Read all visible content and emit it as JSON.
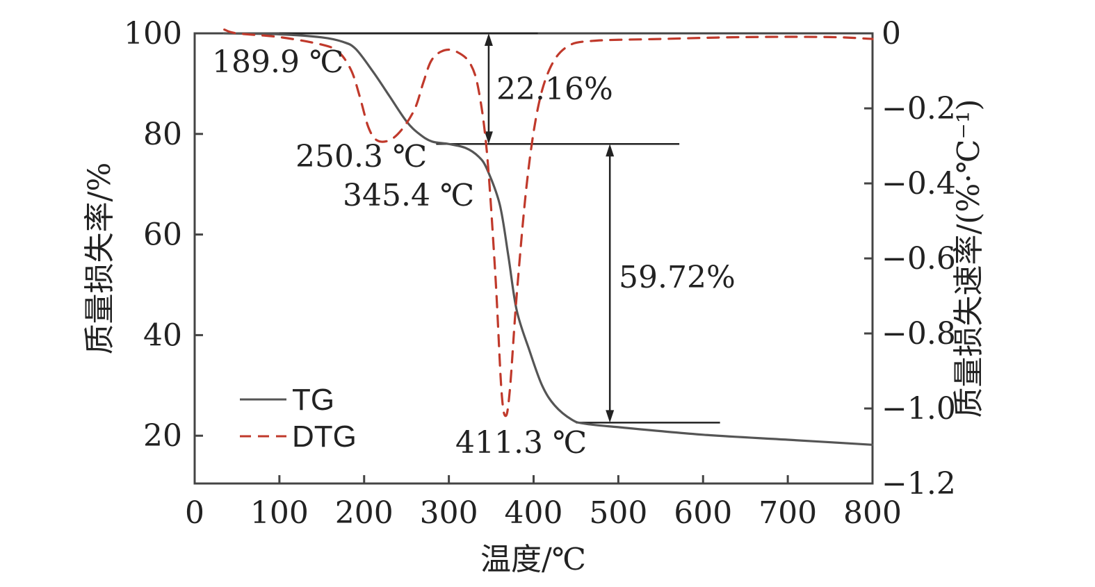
{
  "chart_data": {
    "type": "line",
    "xlabel": "温度/℃",
    "ylabel_left": "质量损失率/%",
    "ylabel_right": "质量损失速率/(%·℃⁻¹)",
    "xlim": [
      0,
      800
    ],
    "ylim_left": [
      10.5,
      100
    ],
    "ylim_right": [
      -1.2,
      0
    ],
    "x_ticks": [
      "0",
      "100",
      "200",
      "300",
      "400",
      "500",
      "600",
      "700",
      "800"
    ],
    "y_left_ticks": [
      "100",
      "80",
      "60",
      "40",
      "20"
    ],
    "y_right_ticks": [
      "0",
      "−0.2",
      "−0.4",
      "−0.6",
      "−0.8",
      "−1.0",
      "−1.2"
    ],
    "grid": false,
    "legend_position": "bottom-left",
    "series": [
      {
        "name": "TG",
        "axis": "left",
        "color": "#555555",
        "dash": "solid",
        "points": [
          [
            35,
            100
          ],
          [
            100,
            99.8
          ],
          [
            150,
            99.2
          ],
          [
            175,
            98.3
          ],
          [
            190,
            96.9
          ],
          [
            210,
            92.5
          ],
          [
            230,
            87.5
          ],
          [
            250,
            82.5
          ],
          [
            265,
            80
          ],
          [
            280,
            78.5
          ],
          [
            300,
            78
          ],
          [
            320,
            77.2
          ],
          [
            335,
            75.5
          ],
          [
            345,
            73
          ],
          [
            360,
            66
          ],
          [
            370,
            56
          ],
          [
            380,
            45
          ],
          [
            395,
            37
          ],
          [
            410,
            30
          ],
          [
            425,
            26
          ],
          [
            445,
            23.2
          ],
          [
            460,
            22.4
          ],
          [
            500,
            21.7
          ],
          [
            600,
            20.2
          ],
          [
            700,
            19.2
          ],
          [
            800,
            18.2
          ]
        ]
      },
      {
        "name": "DTG",
        "axis": "right",
        "color": "#c0392b",
        "dash": "dashed",
        "points": [
          [
            35,
            0.01
          ],
          [
            50,
            0
          ],
          [
            100,
            -0.01
          ],
          [
            150,
            -0.03
          ],
          [
            170,
            -0.05
          ],
          [
            185,
            -0.1
          ],
          [
            195,
            -0.17
          ],
          [
            205,
            -0.25
          ],
          [
            215,
            -0.285
          ],
          [
            230,
            -0.285
          ],
          [
            245,
            -0.255
          ],
          [
            260,
            -0.2
          ],
          [
            270,
            -0.13
          ],
          [
            280,
            -0.07
          ],
          [
            295,
            -0.045
          ],
          [
            310,
            -0.05
          ],
          [
            325,
            -0.08
          ],
          [
            335,
            -0.15
          ],
          [
            345,
            -0.32
          ],
          [
            355,
            -0.65
          ],
          [
            362,
            -0.95
          ],
          [
            367,
            -1.02
          ],
          [
            372,
            -0.95
          ],
          [
            380,
            -0.7
          ],
          [
            392,
            -0.4
          ],
          [
            405,
            -0.2
          ],
          [
            420,
            -0.09
          ],
          [
            440,
            -0.035
          ],
          [
            470,
            -0.02
          ],
          [
            550,
            -0.015
          ],
          [
            650,
            -0.01
          ],
          [
            750,
            -0.01
          ],
          [
            800,
            -0.015
          ]
        ]
      }
    ],
    "annotations": [
      {
        "text": "189.9 ℃"
      },
      {
        "text": "250.3 ℃"
      },
      {
        "text": "345.4 ℃"
      },
      {
        "text": "411.3 ℃"
      },
      {
        "text": "22.16%"
      },
      {
        "text": "59.72%"
      }
    ]
  }
}
